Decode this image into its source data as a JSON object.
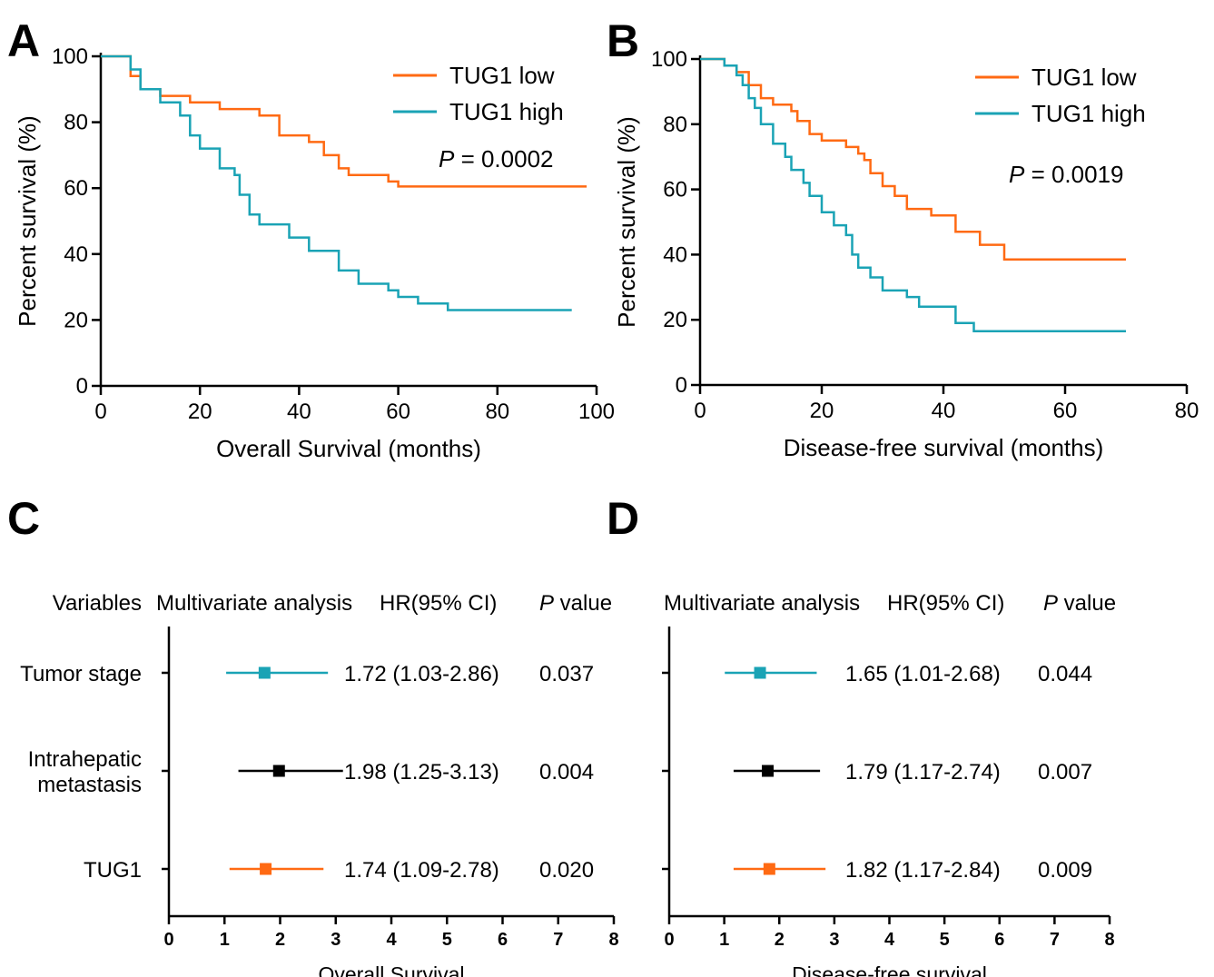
{
  "colors": {
    "low": "#FF6A13",
    "high": "#1AA3B5",
    "black": "#000000",
    "orange_marker": "#FF6A13",
    "teal_marker": "#1AA3B5"
  },
  "chart_data": [
    {
      "panel": "A",
      "type": "line",
      "step": true,
      "xlabel": "Overall Survival (months)",
      "ylabel": "Percent survival (%)",
      "xlim": [
        0,
        100
      ],
      "ylim": [
        0,
        100
      ],
      "xticks": [
        0,
        20,
        40,
        60,
        80,
        100
      ],
      "yticks": [
        0,
        20,
        40,
        60,
        80,
        100
      ],
      "legend_position": "top-right",
      "annotation": {
        "italic": "P",
        "rest": " = 0.0002"
      },
      "series": [
        {
          "name": "TUG1 low",
          "color": "#FF6A13",
          "points": [
            [
              0,
              100
            ],
            [
              6,
              100
            ],
            [
              6,
              94
            ],
            [
              8,
              94
            ],
            [
              8,
              90
            ],
            [
              12,
              90
            ],
            [
              12,
              88
            ],
            [
              18,
              88
            ],
            [
              18,
              86
            ],
            [
              24,
              86
            ],
            [
              24,
              84
            ],
            [
              32,
              84
            ],
            [
              32,
              82
            ],
            [
              36,
              82
            ],
            [
              36,
              76
            ],
            [
              42,
              76
            ],
            [
              42,
              74
            ],
            [
              45,
              74
            ],
            [
              45,
              70
            ],
            [
              48,
              70
            ],
            [
              48,
              66
            ],
            [
              50,
              66
            ],
            [
              50,
              64
            ],
            [
              58,
              64
            ],
            [
              58,
              62
            ],
            [
              60,
              62
            ],
            [
              60,
              60.5
            ],
            [
              98,
              60.5
            ]
          ]
        },
        {
          "name": "TUG1 high",
          "color": "#1AA3B5",
          "points": [
            [
              0,
              100
            ],
            [
              6,
              100
            ],
            [
              6,
              96
            ],
            [
              8,
              96
            ],
            [
              8,
              90
            ],
            [
              12,
              90
            ],
            [
              12,
              86
            ],
            [
              16,
              86
            ],
            [
              16,
              82
            ],
            [
              18,
              82
            ],
            [
              18,
              76
            ],
            [
              20,
              76
            ],
            [
              20,
              72
            ],
            [
              24,
              72
            ],
            [
              24,
              66
            ],
            [
              27,
              66
            ],
            [
              27,
              64
            ],
            [
              28,
              64
            ],
            [
              28,
              58
            ],
            [
              30,
              58
            ],
            [
              30,
              52
            ],
            [
              32,
              52
            ],
            [
              32,
              49
            ],
            [
              38,
              49
            ],
            [
              38,
              45
            ],
            [
              42,
              45
            ],
            [
              42,
              41
            ],
            [
              48,
              41
            ],
            [
              48,
              35
            ],
            [
              52,
              35
            ],
            [
              52,
              31
            ],
            [
              58,
              31
            ],
            [
              58,
              29
            ],
            [
              60,
              29
            ],
            [
              60,
              27
            ],
            [
              64,
              27
            ],
            [
              64,
              25
            ],
            [
              70,
              25
            ],
            [
              70,
              23
            ],
            [
              95,
              23
            ]
          ]
        }
      ]
    },
    {
      "panel": "B",
      "type": "line",
      "step": true,
      "xlabel": "Disease-free survival (months)",
      "ylabel": "Percent survival (%)",
      "xlim": [
        0,
        80
      ],
      "ylim": [
        0,
        100
      ],
      "xticks": [
        0,
        20,
        40,
        60,
        80
      ],
      "yticks": [
        0,
        20,
        40,
        60,
        80,
        100
      ],
      "legend_position": "top-right",
      "annotation": {
        "italic": "P",
        "rest": " = 0.0019"
      },
      "series": [
        {
          "name": "TUG1 low",
          "color": "#FF6A13",
          "points": [
            [
              0,
              100
            ],
            [
              4,
              100
            ],
            [
              4,
              98
            ],
            [
              6,
              98
            ],
            [
              6,
              96
            ],
            [
              8,
              96
            ],
            [
              8,
              92
            ],
            [
              10,
              92
            ],
            [
              10,
              88
            ],
            [
              12,
              88
            ],
            [
              12,
              86
            ],
            [
              15,
              86
            ],
            [
              15,
              84
            ],
            [
              16,
              84
            ],
            [
              16,
              81
            ],
            [
              18,
              81
            ],
            [
              18,
              77
            ],
            [
              20,
              77
            ],
            [
              20,
              75
            ],
            [
              24,
              75
            ],
            [
              24,
              73
            ],
            [
              26,
              73
            ],
            [
              26,
              71
            ],
            [
              27,
              71
            ],
            [
              27,
              69
            ],
            [
              28,
              69
            ],
            [
              28,
              65
            ],
            [
              30,
              65
            ],
            [
              30,
              61
            ],
            [
              32,
              61
            ],
            [
              32,
              58
            ],
            [
              34,
              58
            ],
            [
              34,
              54
            ],
            [
              38,
              54
            ],
            [
              38,
              52
            ],
            [
              42,
              52
            ],
            [
              42,
              47
            ],
            [
              46,
              47
            ],
            [
              46,
              43
            ],
            [
              50,
              43
            ],
            [
              50,
              38.5
            ],
            [
              70,
              38.5
            ]
          ]
        },
        {
          "name": "TUG1 high",
          "color": "#1AA3B5",
          "points": [
            [
              0,
              100
            ],
            [
              4,
              100
            ],
            [
              4,
              98
            ],
            [
              6,
              98
            ],
            [
              6,
              95
            ],
            [
              7,
              95
            ],
            [
              7,
              92
            ],
            [
              8,
              92
            ],
            [
              8,
              88
            ],
            [
              9,
              88
            ],
            [
              9,
              85
            ],
            [
              10,
              85
            ],
            [
              10,
              80
            ],
            [
              12,
              80
            ],
            [
              12,
              74
            ],
            [
              14,
              74
            ],
            [
              14,
              70
            ],
            [
              15,
              70
            ],
            [
              15,
              66
            ],
            [
              17,
              66
            ],
            [
              17,
              62
            ],
            [
              18,
              62
            ],
            [
              18,
              58
            ],
            [
              20,
              58
            ],
            [
              20,
              53
            ],
            [
              22,
              53
            ],
            [
              22,
              49
            ],
            [
              24,
              49
            ],
            [
              24,
              46
            ],
            [
              25,
              46
            ],
            [
              25,
              40
            ],
            [
              26,
              40
            ],
            [
              26,
              36
            ],
            [
              28,
              36
            ],
            [
              28,
              33
            ],
            [
              30,
              33
            ],
            [
              30,
              29
            ],
            [
              34,
              29
            ],
            [
              34,
              27
            ],
            [
              36,
              27
            ],
            [
              36,
              24
            ],
            [
              42,
              24
            ],
            [
              42,
              19
            ],
            [
              45,
              19
            ],
            [
              45,
              16.5
            ],
            [
              70,
              16.5
            ]
          ]
        }
      ]
    },
    {
      "panel": "C",
      "type": "forest",
      "header": {
        "variables": "Variables",
        "analysis": "Multivariate analysis",
        "hr": "HR(95% CI)",
        "p_italic": "P",
        "p_rest": " value"
      },
      "xlabel": "Overall Survival",
      "xlim": [
        0,
        8
      ],
      "xticks": [
        0,
        1,
        2,
        3,
        4,
        5,
        6,
        7,
        8
      ],
      "rows": [
        {
          "label": [
            "Tumor stage"
          ],
          "hr": 1.72,
          "lo": 1.03,
          "hi": 2.86,
          "text": "1.72 (1.03-2.86)",
          "p": "0.037",
          "color": "#1AA3B5"
        },
        {
          "label": [
            "Intrahepatic",
            "metastasis"
          ],
          "hr": 1.98,
          "lo": 1.25,
          "hi": 3.13,
          "text": "1.98 (1.25-3.13)",
          "p": "0.004",
          "color": "#000000"
        },
        {
          "label": [
            "TUG1"
          ],
          "hr": 1.74,
          "lo": 1.09,
          "hi": 2.78,
          "text": "1.74 (1.09-2.78)",
          "p": "0.020",
          "color": "#FF6A13"
        }
      ]
    },
    {
      "panel": "D",
      "type": "forest",
      "header": {
        "analysis": "Multivariate analysis",
        "hr": "HR(95% CI)",
        "p_italic": "P",
        "p_rest": " value"
      },
      "xlabel": "Disease-free survival",
      "xlim": [
        0,
        8
      ],
      "xticks": [
        0,
        1,
        2,
        3,
        4,
        5,
        6,
        7,
        8
      ],
      "rows": [
        {
          "hr": 1.65,
          "lo": 1.01,
          "hi": 2.68,
          "text": "1.65 (1.01-2.68)",
          "p": "0.044",
          "color": "#1AA3B5"
        },
        {
          "hr": 1.79,
          "lo": 1.17,
          "hi": 2.74,
          "text": "1.79 (1.17-2.74)",
          "p": "0.007",
          "color": "#000000"
        },
        {
          "hr": 1.82,
          "lo": 1.17,
          "hi": 2.84,
          "text": "1.82 (1.17-2.84)",
          "p": "0.009",
          "color": "#FF6A13"
        }
      ]
    }
  ]
}
